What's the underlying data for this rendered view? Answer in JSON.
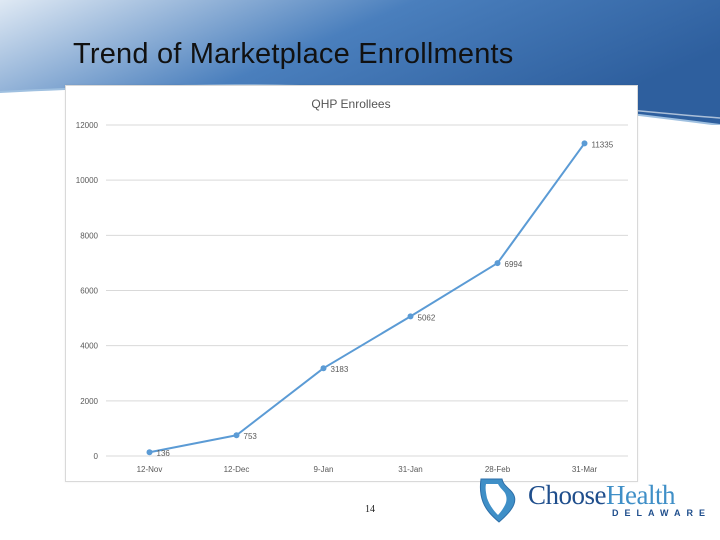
{
  "slide": {
    "title": "Trend of Marketplace Enrollments",
    "page_number": "14"
  },
  "logo": {
    "word_part1": "Choose",
    "word_part2": "Health",
    "subtitle": "DELAWARE",
    "icon": "delaware-state-outline-icon"
  },
  "colors": {
    "header_blue": "#2e5f9e",
    "series_line": "#5b9bd5",
    "gridline": "#d9d9d9"
  },
  "chart_data": {
    "type": "line",
    "title": "QHP Enrollees",
    "categories": [
      "12-Nov",
      "12-Dec",
      "9-Jan",
      "31-Jan",
      "28-Feb",
      "31-Mar"
    ],
    "series": [
      {
        "values": [
          136,
          753,
          3183,
          5062,
          6994,
          11335
        ]
      }
    ],
    "data_labels": [
      "136",
      "753",
      "3183",
      "5062",
      "6994",
      "11335"
    ],
    "y_ticks": [
      "0",
      "2000",
      "4000",
      "6000",
      "8000",
      "10000",
      "12000"
    ],
    "ylim": [
      0,
      12000
    ],
    "xlabel": "",
    "ylabel": "",
    "grid": true,
    "legend": "none"
  }
}
